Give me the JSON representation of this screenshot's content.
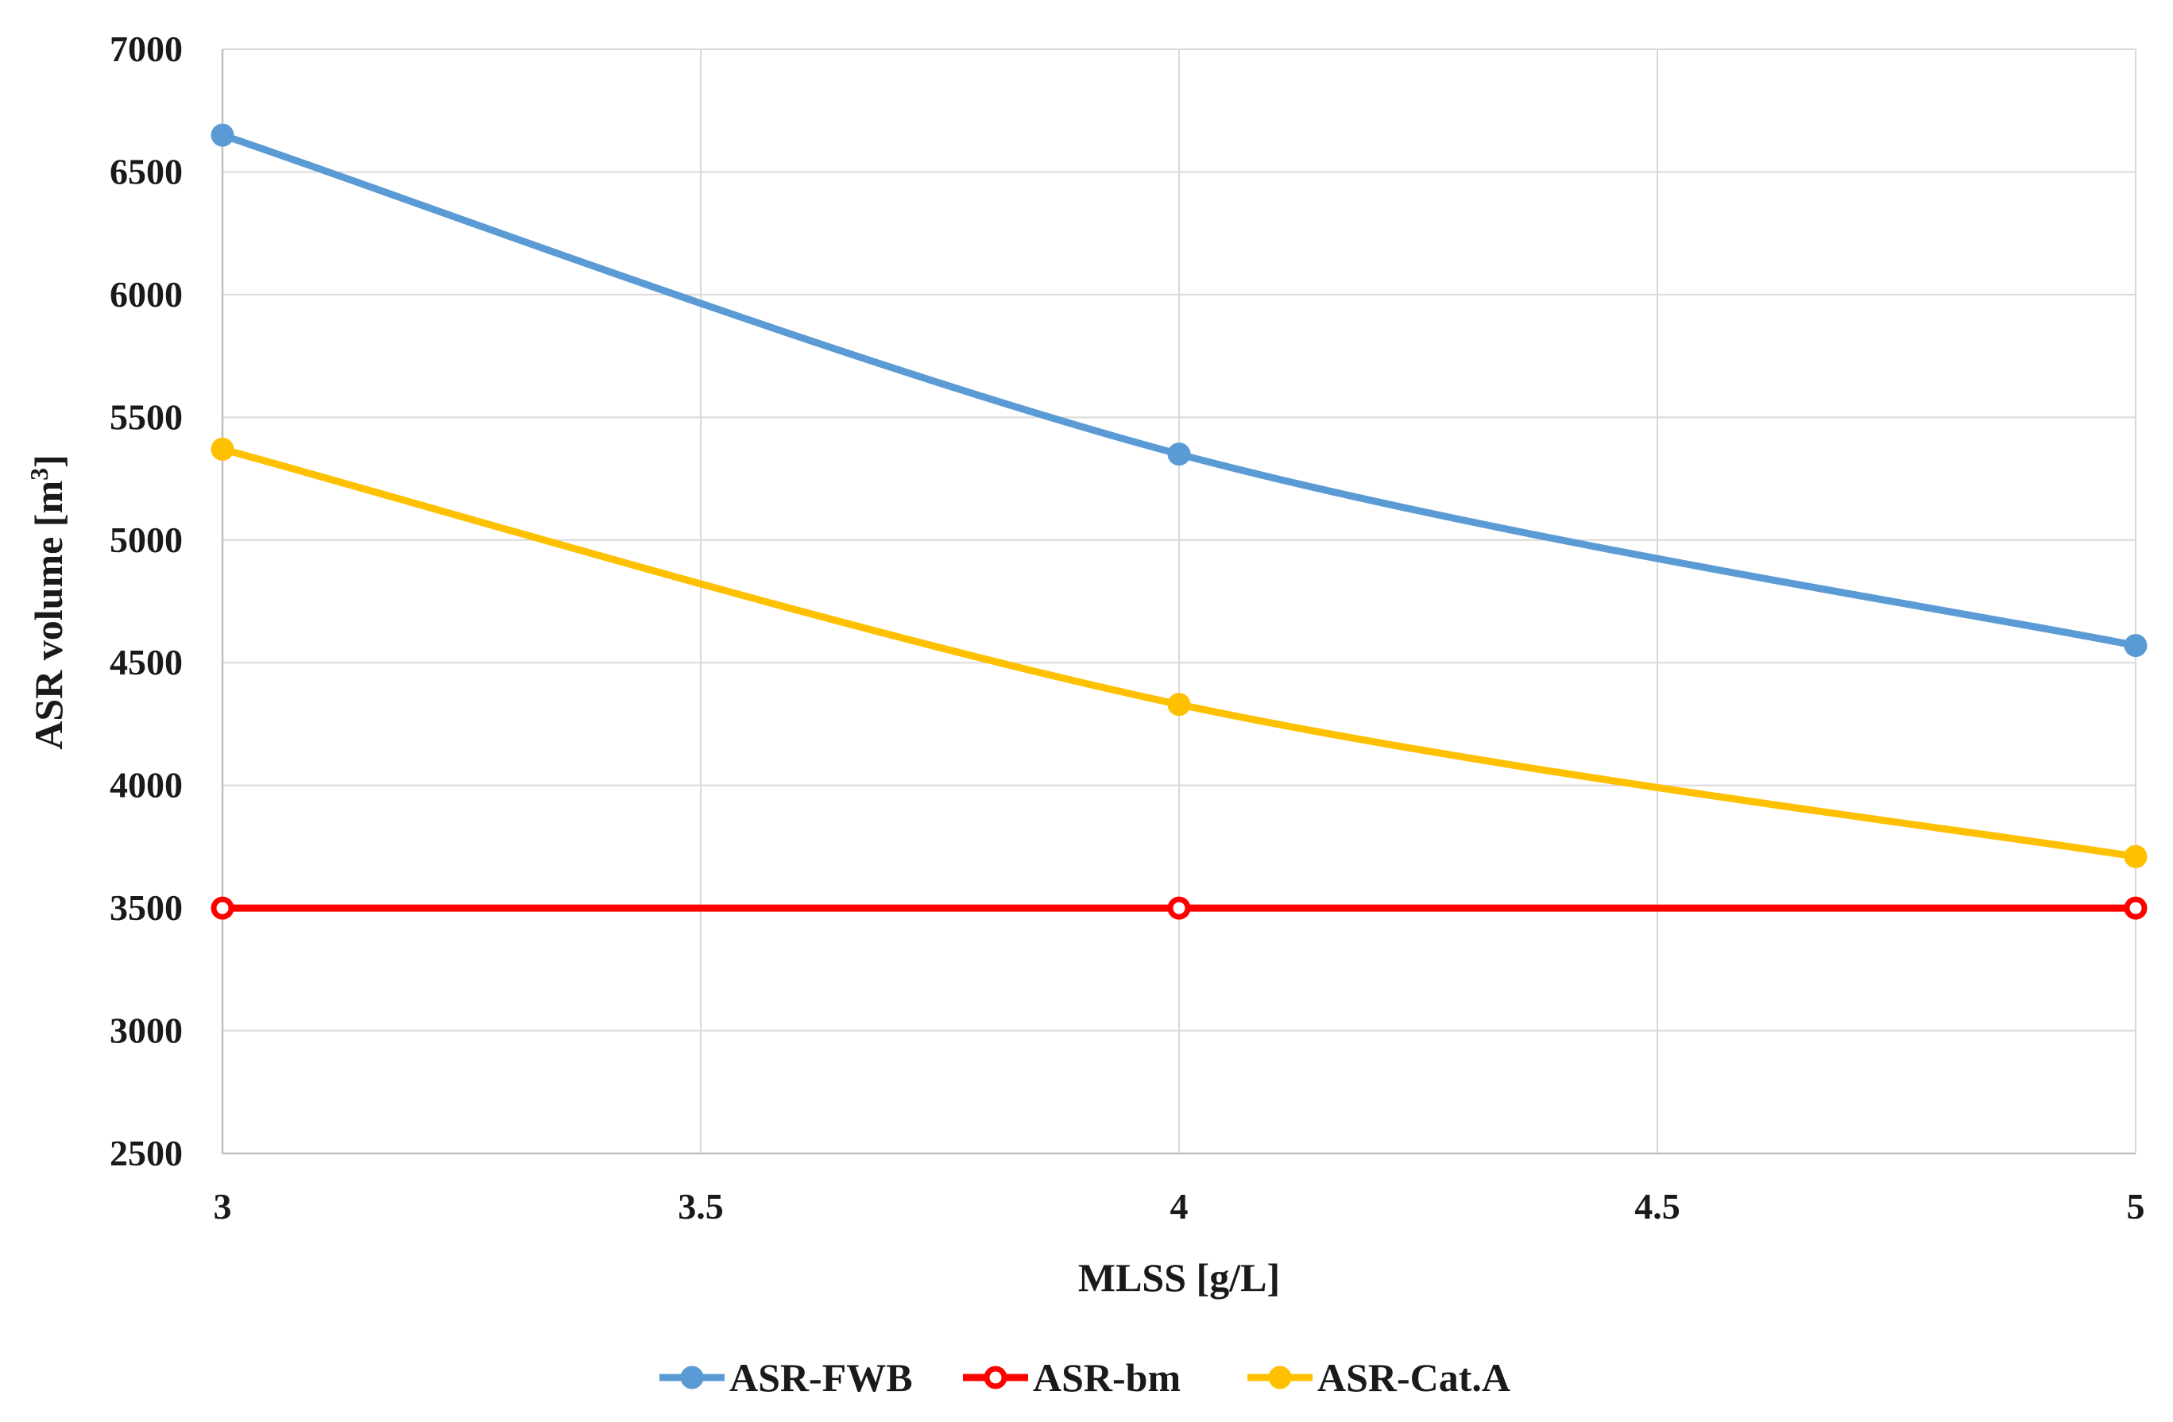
{
  "chart_data": {
    "type": "line",
    "title": "",
    "xlabel": "MLSS [g/L]",
    "ylabel_main": "ASR volume [m",
    "ylabel_sup": "3",
    "ylabel_end": "]",
    "xlim": [
      3,
      5
    ],
    "ylim": [
      2500,
      7000
    ],
    "xticks": [
      3,
      3.5,
      4,
      4.5,
      5
    ],
    "xtick_labels": [
      "3",
      "3.5",
      "4",
      "4.5",
      "5"
    ],
    "yticks": [
      2500,
      3000,
      3500,
      4000,
      4500,
      5000,
      5500,
      6000,
      6500,
      7000
    ],
    "ytick_labels": [
      "2500",
      "3000",
      "3500",
      "4000",
      "4500",
      "5000",
      "5500",
      "6000",
      "6500",
      "7000"
    ],
    "grid": true,
    "legend_position": "bottom-center",
    "series": [
      {
        "name": "ASR-FWB",
        "color": "#5b9bd5",
        "marker": "filled-circle",
        "x": [
          3,
          4,
          5
        ],
        "y": [
          6650,
          5350,
          4570
        ]
      },
      {
        "name": "ASR-bm",
        "color": "#ff0000",
        "marker": "open-circle",
        "x": [
          3,
          4,
          5
        ],
        "y": [
          3500,
          3500,
          3500
        ]
      },
      {
        "name": "ASR-Cat.A",
        "color": "#ffc000",
        "marker": "filled-circle",
        "x": [
          3,
          4,
          5
        ],
        "y": [
          5370,
          4330,
          3710
        ]
      }
    ]
  }
}
